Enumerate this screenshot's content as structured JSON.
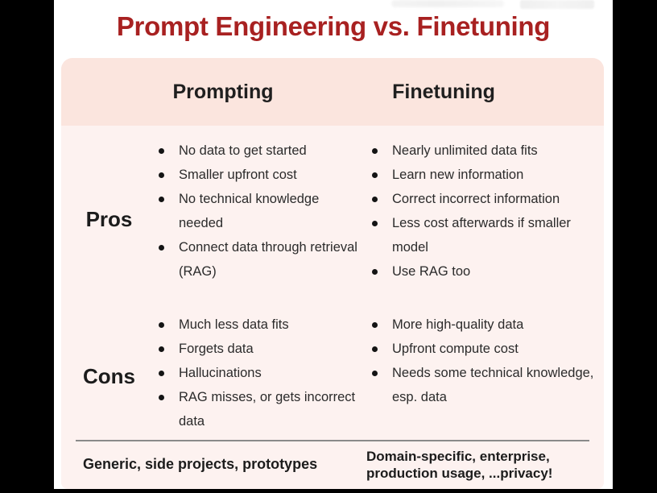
{
  "title": "Prompt Engineering vs. Finetuning",
  "table": {
    "header": {
      "col1": "Prompting",
      "col2": "Finetuning"
    },
    "rows": [
      {
        "label": "Pros",
        "prompting": [
          "No data to get started",
          "Smaller upfront cost",
          "No technical knowledge needed",
          "Connect data through retrieval (RAG)"
        ],
        "finetuning": [
          "Nearly unlimited data fits",
          "Learn new information",
          "Correct incorrect information",
          "Less cost afterwards if smaller model",
          "Use RAG too"
        ]
      },
      {
        "label": "Cons",
        "prompting": [
          "Much less data fits",
          "Forgets data",
          "Hallucinations",
          "RAG misses, or gets incorrect data"
        ],
        "finetuning": [
          "More high-quality data",
          "Upfront compute cost",
          "Needs some technical knowledge, esp. data"
        ]
      }
    ],
    "footer": {
      "prompting": "Generic, side projects, prototypes",
      "finetuning": "Domain-specific, enterprise, production usage, ...privacy!"
    }
  },
  "colors": {
    "title": "#a82121",
    "header_bg": "#fbe5de",
    "body_bg": "#fdf2f0",
    "text": "#2b2b2b",
    "divider": "#8a8a8a",
    "frame": "#000000"
  }
}
